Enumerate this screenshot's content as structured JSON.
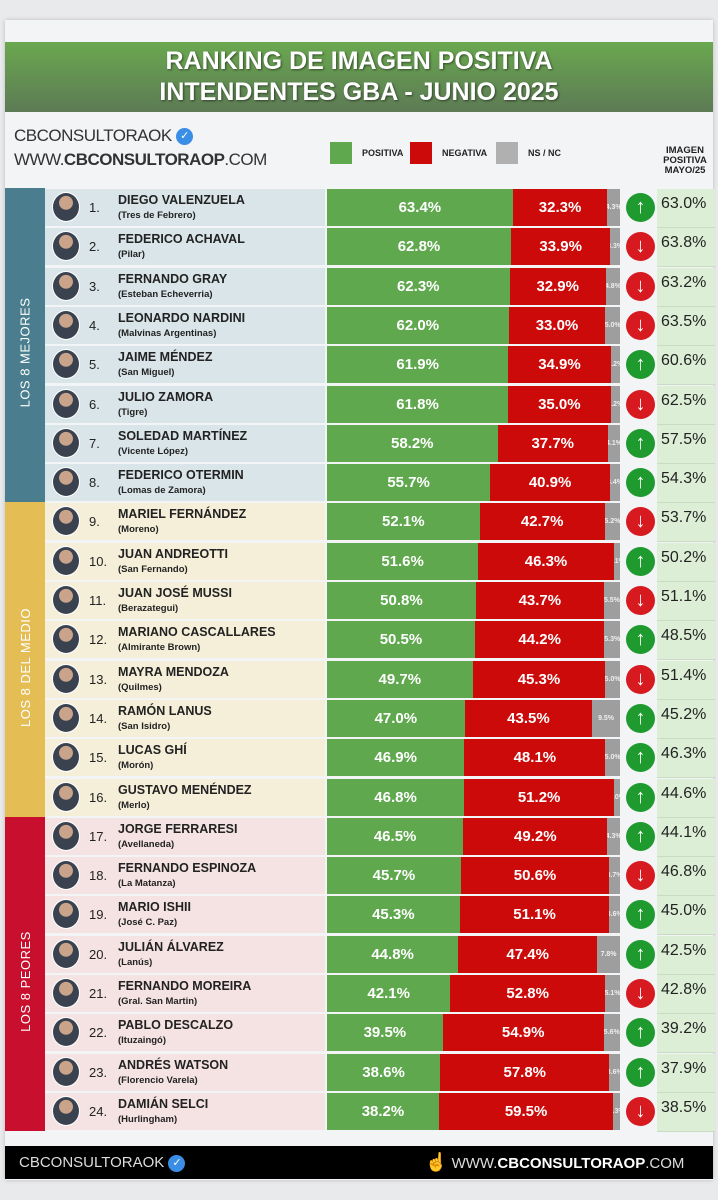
{
  "title_line1": "RANKING DE IMAGEN POSITIVA",
  "title_line2": "INTENDENTES GBA - JUNIO 2025",
  "brand": {
    "handle": "CBCONSULTORAOK",
    "url_prefix": "WWW.",
    "url_bold": "CBCONSULTORAOP",
    "url_suffix": ".COM"
  },
  "colors": {
    "positiva": "#5fa84e",
    "negativa": "#cc0a0a",
    "nsnc": "#9e9e9e",
    "up": "#1f9a2e",
    "down": "#d71920"
  },
  "groups": [
    {
      "label": "LOS 8 MEJORES",
      "color": "#4a7e8e",
      "row_bg": "#d9e5e9"
    },
    {
      "label": "LOS 8 DEL MEDIO",
      "color": "#e4bd55",
      "row_bg": "#f5efd9"
    },
    {
      "label": "LOS 8 PEORES",
      "color": "#c8102e",
      "row_bg": "#f5e3e3"
    }
  ],
  "footer": {
    "handle": "CBCONSULTORAOK",
    "url_prefix": "WWW.",
    "url_bold": "CBCONSULTORAOP",
    "url_suffix": ".COM",
    "pointer_icon": "hand-pointer-icon"
  },
  "chart_data": {
    "type": "bar",
    "stacked": true,
    "orientation": "horizontal",
    "legend": [
      "POSITIVA",
      "NEGATIVA",
      "NS / NC"
    ],
    "legend_placement": "top",
    "extra_column_title": "IMAGEN POSITIVA MAYO/25",
    "rows": [
      {
        "rank": "1.",
        "name": "DIEGO VALENZUELA",
        "municipio": "(Tres de Febrero)",
        "positiva": "63.4%",
        "negativa": "32.3%",
        "nsnc": "4.3%",
        "trend": "up",
        "mayo": "63.0%"
      },
      {
        "rank": "2.",
        "name": "FEDERICO ACHAVAL",
        "municipio": "(Pilar)",
        "positiva": "62.8%",
        "negativa": "33.9%",
        "nsnc": "3.3%",
        "trend": "down",
        "mayo": "63.8%"
      },
      {
        "rank": "3.",
        "name": "FERNANDO GRAY",
        "municipio": "(Esteban Echeverria)",
        "positiva": "62.3%",
        "negativa": "32.9%",
        "nsnc": "4.8%",
        "trend": "down",
        "mayo": "63.2%"
      },
      {
        "rank": "4.",
        "name": "LEONARDO NARDINI",
        "municipio": "(Malvinas Argentinas)",
        "positiva": "62.0%",
        "negativa": "33.0%",
        "nsnc": "5.0%",
        "trend": "down",
        "mayo": "63.5%"
      },
      {
        "rank": "5.",
        "name": "JAIME MÉNDEZ",
        "municipio": "(San Miguel)",
        "positiva": "61.9%",
        "negativa": "34.9%",
        "nsnc": "3.2%",
        "trend": "up",
        "mayo": "60.6%"
      },
      {
        "rank": "6.",
        "name": "JULIO ZAMORA",
        "municipio": "(Tigre)",
        "positiva": "61.8%",
        "negativa": "35.0%",
        "nsnc": "3.2%",
        "trend": "down",
        "mayo": "62.5%"
      },
      {
        "rank": "7.",
        "name": "SOLEDAD MARTÍNEZ",
        "municipio": "(Vicente López)",
        "positiva": "58.2%",
        "negativa": "37.7%",
        "nsnc": "4.1%",
        "trend": "up",
        "mayo": "57.5%"
      },
      {
        "rank": "8.",
        "name": "FEDERICO OTERMIN",
        "municipio": "(Lomas de Zamora)",
        "positiva": "55.7%",
        "negativa": "40.9%",
        "nsnc": "3.4%",
        "trend": "up",
        "mayo": "54.3%"
      },
      {
        "rank": "9.",
        "name": "MARIEL FERNÁNDEZ",
        "municipio": "(Moreno)",
        "positiva": "52.1%",
        "negativa": "42.7%",
        "nsnc": "5.2%",
        "trend": "down",
        "mayo": "53.7%"
      },
      {
        "rank": "10.",
        "name": "JUAN ANDREOTTI",
        "municipio": "(San Fernando)",
        "positiva": "51.6%",
        "negativa": "46.3%",
        "nsnc": "2.1%",
        "trend": "up",
        "mayo": "50.2%"
      },
      {
        "rank": "11.",
        "name": "JUAN JOSÉ MUSSI",
        "municipio": "(Berazategui)",
        "positiva": "50.8%",
        "negativa": "43.7%",
        "nsnc": "5.5%",
        "trend": "down",
        "mayo": "51.1%"
      },
      {
        "rank": "12.",
        "name": "MARIANO CASCALLARES",
        "municipio": "(Almirante Brown)",
        "positiva": "50.5%",
        "negativa": "44.2%",
        "nsnc": "5.3%",
        "trend": "up",
        "mayo": "48.5%"
      },
      {
        "rank": "13.",
        "name": "MAYRA MENDOZA",
        "municipio": "(Quilmes)",
        "positiva": "49.7%",
        "negativa": "45.3%",
        "nsnc": "5.0%",
        "trend": "down",
        "mayo": "51.4%"
      },
      {
        "rank": "14.",
        "name": "RAMÓN LANUS",
        "municipio": "(San Isidro)",
        "positiva": "47.0%",
        "negativa": "43.5%",
        "nsnc": "9.5%",
        "trend": "up",
        "mayo": "45.2%"
      },
      {
        "rank": "15.",
        "name": "LUCAS GHÍ",
        "municipio": "(Morón)",
        "positiva": "46.9%",
        "negativa": "48.1%",
        "nsnc": "5.0%",
        "trend": "up",
        "mayo": "46.3%"
      },
      {
        "rank": "16.",
        "name": "GUSTAVO MENÉNDEZ",
        "municipio": "(Merlo)",
        "positiva": "46.8%",
        "negativa": "51.2%",
        "nsnc": "2.0%",
        "trend": "up",
        "mayo": "44.6%"
      },
      {
        "rank": "17.",
        "name": "JORGE FERRARESI",
        "municipio": "(Avellaneda)",
        "positiva": "46.5%",
        "negativa": "49.2%",
        "nsnc": "4.3%",
        "trend": "up",
        "mayo": "44.1%"
      },
      {
        "rank": "18.",
        "name": "FERNANDO ESPINOZA",
        "municipio": "(La Matanza)",
        "positiva": "45.7%",
        "negativa": "50.6%",
        "nsnc": "3.7%",
        "trend": "down",
        "mayo": "46.8%"
      },
      {
        "rank": "19.",
        "name": "MARIO ISHII",
        "municipio": "(José C. Paz)",
        "positiva": "45.3%",
        "negativa": "51.1%",
        "nsnc": "3.6%",
        "trend": "up",
        "mayo": "45.0%"
      },
      {
        "rank": "20.",
        "name": "JULIÁN ÁLVAREZ",
        "municipio": "(Lanús)",
        "positiva": "44.8%",
        "negativa": "47.4%",
        "nsnc": "7.8%",
        "trend": "up",
        "mayo": "42.5%"
      },
      {
        "rank": "21.",
        "name": "FERNANDO MOREIRA",
        "municipio": "(Gral. San Martin)",
        "positiva": "42.1%",
        "negativa": "52.8%",
        "nsnc": "5.1%",
        "trend": "down",
        "mayo": "42.8%"
      },
      {
        "rank": "22.",
        "name": "PABLO DESCALZO",
        "municipio": "(Ituzaingó)",
        "positiva": "39.5%",
        "negativa": "54.9%",
        "nsnc": "5.6%",
        "trend": "up",
        "mayo": "39.2%"
      },
      {
        "rank": "23.",
        "name": "ANDRÉS WATSON",
        "municipio": "(Florencio Varela)",
        "positiva": "38.6%",
        "negativa": "57.8%",
        "nsnc": "3.6%",
        "trend": "up",
        "mayo": "37.9%"
      },
      {
        "rank": "24.",
        "name": "DAMIÁN SELCI",
        "municipio": "(Hurlingham)",
        "positiva": "38.2%",
        "negativa": "59.5%",
        "nsnc": "2.3%",
        "trend": "down",
        "mayo": "38.5%"
      }
    ]
  }
}
